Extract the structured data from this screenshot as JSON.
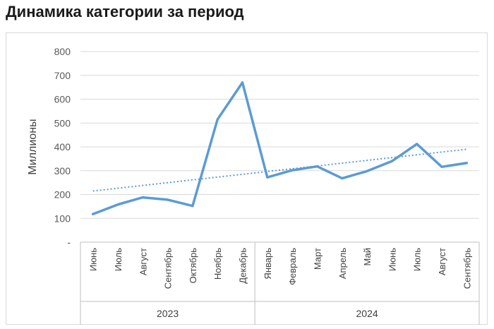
{
  "title": "Динамика категории за период",
  "chart_data": {
    "type": "line",
    "title": "Динамика категории за период",
    "ylabel": "Миллионы",
    "xlabel": "",
    "ylim": [
      0,
      800
    ],
    "yticks": [
      0,
      100,
      200,
      300,
      400,
      500,
      600,
      700,
      800
    ],
    "ytick_labels": [
      "-",
      "100",
      "200",
      "300",
      "400",
      "500",
      "600",
      "700",
      "800"
    ],
    "grid": true,
    "legend": "none",
    "categories": [
      "Июнь",
      "Июль",
      "Август",
      "Сентябрь",
      "Октябрь",
      "Ноябрь",
      "Декабрь",
      "Январь",
      "Февраль",
      "Март",
      "Апрель",
      "Май",
      "Июнь",
      "Июль",
      "Август",
      "Сентябрь"
    ],
    "groups": [
      {
        "label": "2023",
        "count": 7
      },
      {
        "label": "2024",
        "count": 9
      }
    ],
    "series": [
      {
        "values": [
          118,
          158,
          188,
          178,
          152,
          515,
          670,
          272,
          302,
          318,
          268,
          298,
          340,
          412,
          316,
          332
        ],
        "color": "#5b9bd5"
      }
    ],
    "trendline": {
      "type": "linear",
      "style": "dotted",
      "color": "#5b9bd5"
    }
  }
}
